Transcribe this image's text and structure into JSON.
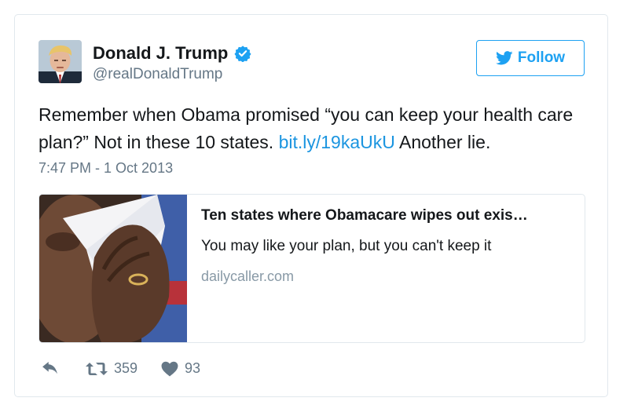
{
  "tweet": {
    "author_name": "Donald J. Trump",
    "handle": "@realDonaldTrump",
    "follow_label": "Follow",
    "text_before": "Remember when Obama promised “you can keep your health care plan?” Not in these 10 states. ",
    "link_text": "bit.ly/19kaUkU",
    "text_after": " Another lie.",
    "timestamp": "7:47 PM - 1 Oct 2013",
    "link_card": {
      "title": "Ten states where Obamacare wipes out exis…",
      "description": "You may like your plan, but you can't keep it",
      "domain": "dailycaller.com"
    },
    "retweet_count": "359",
    "like_count": "93"
  },
  "icons": {
    "verified": "verified-badge-icon",
    "bird": "twitter-bird-icon",
    "reply": "reply-icon",
    "retweet": "retweet-icon",
    "like": "heart-icon"
  },
  "colors": {
    "accent": "#1da1f2",
    "link": "#1b95e0",
    "muted": "#657786",
    "border": "#e1e8ed"
  }
}
